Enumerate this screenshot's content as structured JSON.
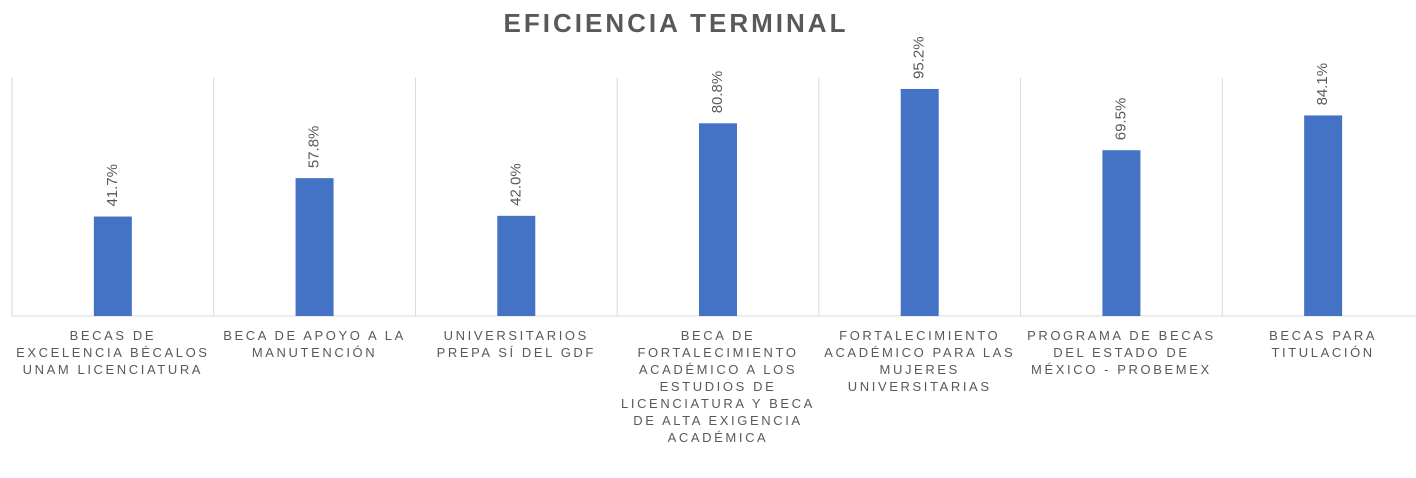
{
  "chart_data": {
    "type": "bar",
    "title": "EFICIENCIA TERMINAL",
    "categories": [
      "BECAS DE EXCELENCIA BÉCALOS UNAM LICENCIATURA",
      "BECA DE APOYO A LA MANUTENCIÓN",
      "UNIVERSITARIOS PREPA SÍ DEL GDF",
      "BECA DE FORTALECIMIENTO ACADÉMICO A LOS ESTUDIOS DE LICENCIATURA Y BECA DE ALTA EXIGENCIA ACADÉMICA",
      "FORTALECIMIENTO ACADÉMICO PARA LAS MUJERES UNIVERSITARIAS",
      "PROGRAMA DE BECAS DEL ESTADO DE MÉXICO - PROBEMEX",
      "BECAS PARA TITULACIÓN"
    ],
    "values": [
      41.7,
      57.8,
      42.0,
      80.8,
      95.2,
      69.5,
      84.1
    ],
    "value_labels": [
      "41.7%",
      "57.8%",
      "42.0%",
      "80.8%",
      "95.2%",
      "69.5%",
      "84.1%"
    ],
    "color": "#4472c4",
    "ylim": [
      0,
      100
    ]
  }
}
